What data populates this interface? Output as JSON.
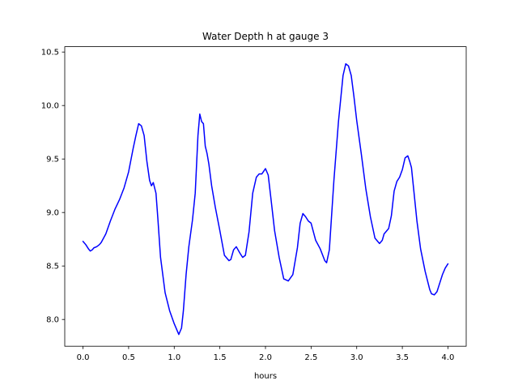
{
  "chart_data": {
    "type": "line",
    "title": "Water Depth h at gauge 3",
    "xlabel": "hours",
    "ylabel": "",
    "xlim": [
      -0.2,
      4.2
    ],
    "ylim": [
      7.75,
      10.55
    ],
    "xticks": [
      0.0,
      0.5,
      1.0,
      1.5,
      2.0,
      2.5,
      3.0,
      3.5,
      4.0
    ],
    "xtick_labels": [
      "0.0",
      "0.5",
      "1.0",
      "1.5",
      "2.0",
      "2.5",
      "3.0",
      "3.5",
      "4.0"
    ],
    "yticks": [
      8.0,
      8.5,
      9.0,
      9.5,
      10.0,
      10.5
    ],
    "ytick_labels": [
      "8.0",
      "8.5",
      "9.0",
      "9.5",
      "10.0",
      "10.5"
    ],
    "grid": false,
    "series": [
      {
        "color": "#0000ff",
        "x": [
          0.0,
          0.03,
          0.06,
          0.08,
          0.1,
          0.12,
          0.15,
          0.18,
          0.2,
          0.25,
          0.3,
          0.35,
          0.4,
          0.45,
          0.5,
          0.55,
          0.58,
          0.61,
          0.64,
          0.67,
          0.7,
          0.73,
          0.75,
          0.77,
          0.8,
          0.82,
          0.85,
          0.9,
          0.95,
          1.0,
          1.05,
          1.08,
          1.1,
          1.13,
          1.16,
          1.2,
          1.23,
          1.26,
          1.28,
          1.3,
          1.32,
          1.34,
          1.36,
          1.38,
          1.41,
          1.45,
          1.5,
          1.55,
          1.6,
          1.62,
          1.65,
          1.68,
          1.72,
          1.75,
          1.78,
          1.82,
          1.86,
          1.9,
          1.93,
          1.96,
          2.0,
          2.03,
          2.06,
          2.1,
          2.15,
          2.2,
          2.25,
          2.3,
          2.35,
          2.38,
          2.41,
          2.44,
          2.47,
          2.5,
          2.55,
          2.6,
          2.65,
          2.67,
          2.7,
          2.75,
          2.8,
          2.85,
          2.88,
          2.91,
          2.94,
          2.97,
          3.0,
          3.05,
          3.1,
          3.15,
          3.2,
          3.25,
          3.28,
          3.3,
          3.35,
          3.38,
          3.41,
          3.44,
          3.47,
          3.5,
          3.53,
          3.56,
          3.58,
          3.6,
          3.63,
          3.66,
          3.7,
          3.75,
          3.8,
          3.82,
          3.85,
          3.88,
          3.91,
          3.94,
          3.97,
          4.0
        ],
        "y": [
          8.73,
          8.7,
          8.66,
          8.64,
          8.65,
          8.67,
          8.68,
          8.7,
          8.72,
          8.8,
          8.92,
          9.03,
          9.12,
          9.23,
          9.38,
          9.6,
          9.72,
          9.83,
          9.81,
          9.72,
          9.48,
          9.3,
          9.25,
          9.28,
          9.18,
          8.95,
          8.58,
          8.25,
          8.08,
          7.96,
          7.86,
          7.92,
          8.08,
          8.42,
          8.68,
          8.93,
          9.18,
          9.72,
          9.92,
          9.85,
          9.83,
          9.62,
          9.55,
          9.45,
          9.25,
          9.05,
          8.83,
          8.6,
          8.55,
          8.56,
          8.65,
          8.68,
          8.62,
          8.58,
          8.6,
          8.82,
          9.18,
          9.33,
          9.36,
          9.36,
          9.41,
          9.35,
          9.13,
          8.83,
          8.58,
          8.38,
          8.36,
          8.42,
          8.67,
          8.9,
          8.99,
          8.96,
          8.92,
          8.9,
          8.74,
          8.66,
          8.55,
          8.53,
          8.65,
          9.3,
          9.85,
          10.28,
          10.39,
          10.37,
          10.28,
          10.08,
          9.86,
          9.55,
          9.22,
          8.96,
          8.76,
          8.71,
          8.74,
          8.8,
          8.85,
          8.97,
          9.2,
          9.29,
          9.33,
          9.4,
          9.51,
          9.53,
          9.48,
          9.42,
          9.17,
          8.92,
          8.66,
          8.45,
          8.28,
          8.24,
          8.23,
          8.26,
          8.34,
          8.42,
          8.48,
          8.52
        ]
      }
    ]
  }
}
